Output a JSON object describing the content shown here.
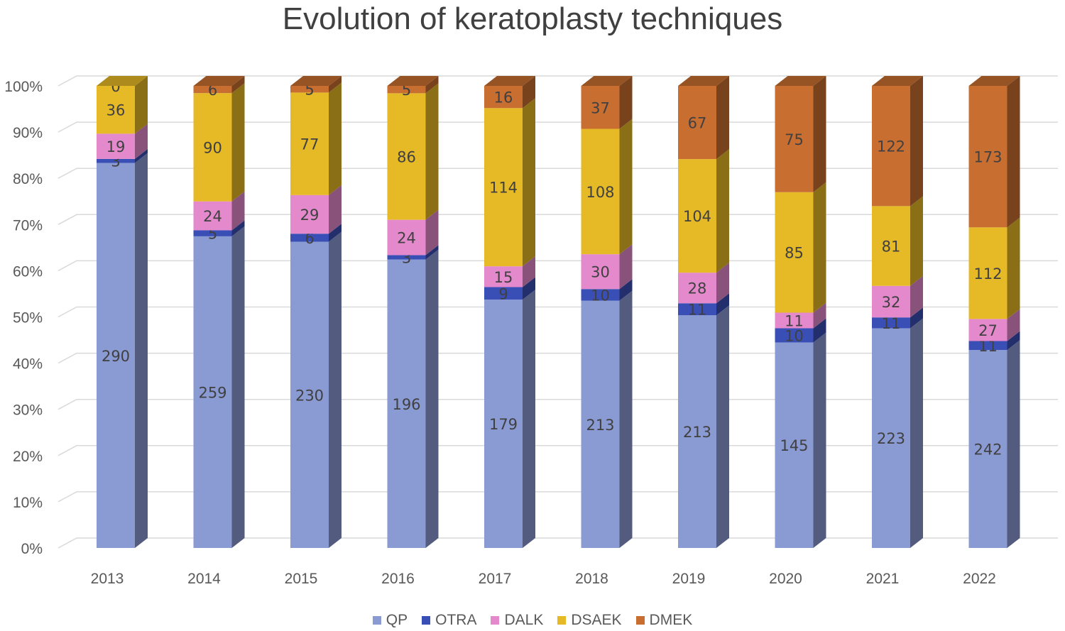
{
  "chart_data": {
    "type": "bar",
    "stacked": "percent",
    "title": "Evolution of keratoplasty techniques",
    "categories": [
      "2013",
      "2014",
      "2015",
      "2016",
      "2017",
      "2018",
      "2019",
      "2020",
      "2021",
      "2022"
    ],
    "series": [
      {
        "name": "QP",
        "color": "#8a9ad3",
        "values": [
          290,
          259,
          230,
          196,
          179,
          213,
          213,
          145,
          223,
          242
        ]
      },
      {
        "name": "OTRA",
        "color": "#3a4fb5",
        "values": [
          3,
          5,
          6,
          3,
          9,
          10,
          11,
          10,
          11,
          11
        ]
      },
      {
        "name": "DALK",
        "color": "#e389cc",
        "values": [
          19,
          24,
          29,
          24,
          15,
          30,
          28,
          11,
          32,
          27
        ]
      },
      {
        "name": "DSAEK",
        "color": "#e6b927",
        "values": [
          36,
          90,
          77,
          86,
          114,
          108,
          104,
          85,
          81,
          112
        ]
      },
      {
        "name": "DMEK",
        "color": "#c86e30",
        "values": [
          0,
          6,
          5,
          5,
          16,
          37,
          67,
          75,
          122,
          173
        ]
      }
    ],
    "yticks": [
      "0%",
      "10%",
      "20%",
      "30%",
      "40%",
      "50%",
      "60%",
      "70%",
      "80%",
      "90%",
      "100%"
    ],
    "ylim": [
      0,
      100
    ],
    "legend_position": "bottom",
    "grid": true
  }
}
